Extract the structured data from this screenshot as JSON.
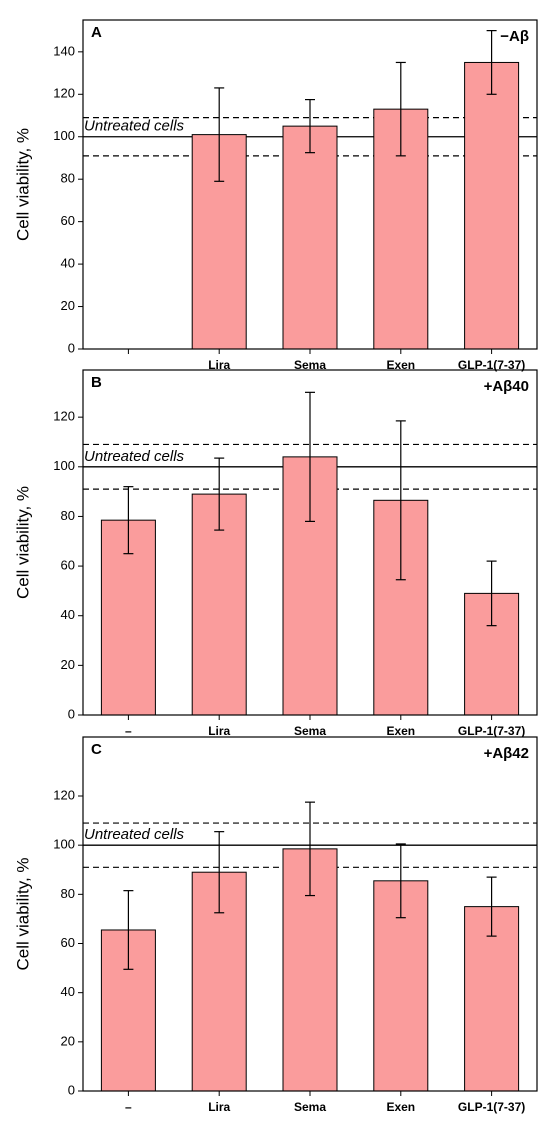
{
  "chart_data": [
    {
      "type": "bar",
      "panel": "A",
      "condition": "−Aβ",
      "y_label": "Cell viability, %",
      "annotation": "Untreated cells",
      "categories": [
        null,
        "Lira",
        "Sema",
        "Exen",
        "GLP-1(7-37)"
      ],
      "values": [
        null,
        101,
        105,
        113,
        135
      ],
      "errors": [
        null,
        22,
        12.5,
        22,
        15
      ],
      "color": "#fa9c9c",
      "reference_line": 100,
      "reference_band": [
        91,
        109
      ],
      "ylim": [
        0,
        155
      ],
      "yticks": [
        0,
        20,
        40,
        60,
        80,
        100,
        120,
        140
      ]
    },
    {
      "type": "bar",
      "panel": "B",
      "condition": "+Aβ40",
      "y_label": "Cell viability, %",
      "annotation": "Untreated cells",
      "categories": [
        "–",
        "Lira",
        "Sema",
        "Exen",
        "GLP-1(7-37)"
      ],
      "values": [
        78.5,
        89,
        104,
        86.5,
        49
      ],
      "errors": [
        13.5,
        14.5,
        26,
        32,
        13
      ],
      "color": "#fa9c9c",
      "reference_line": 100,
      "reference_band": [
        91,
        109
      ],
      "ylim": [
        0,
        139
      ],
      "yticks": [
        0,
        20,
        40,
        60,
        80,
        100,
        120
      ]
    },
    {
      "type": "bar",
      "panel": "C",
      "condition": "+Aβ42",
      "y_label": "Cell viability, %",
      "annotation": "Untreated cells",
      "categories": [
        "–",
        "Lira",
        "Sema",
        "Exen",
        "GLP-1(7-37)"
      ],
      "values": [
        65.5,
        89,
        98.5,
        85.5,
        75
      ],
      "errors": [
        16,
        16.5,
        19,
        15,
        12
      ],
      "color": "#fa9c9c",
      "reference_line": 100,
      "reference_band": [
        91,
        109
      ],
      "ylim": [
        0,
        144
      ],
      "yticks": [
        0,
        20,
        40,
        60,
        80,
        100,
        120
      ]
    }
  ]
}
